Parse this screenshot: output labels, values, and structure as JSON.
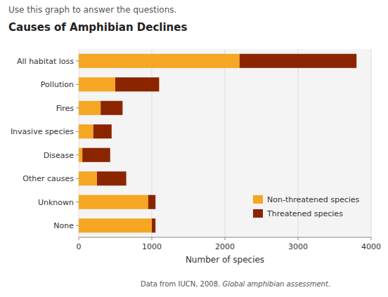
{
  "chart_data": {
    "type": "bar",
    "orientation": "horizontal",
    "stacked": true,
    "title": "Causes of Amphibian Declines",
    "subtitle": "Use this graph to answer the questions.",
    "x_label": "Number of species",
    "categories": [
      "None",
      "Unknown",
      "Other causes",
      "Disease",
      "Invasive species",
      "Fires",
      "Pollution",
      "All habitat loss"
    ],
    "series": [
      {
        "name": "Non-threatened species",
        "color": "#F5A623",
        "values": [
          1000,
          950,
          250,
          50,
          200,
          300,
          500,
          2200
        ]
      },
      {
        "name": "Threatened species",
        "color": "#8B2500",
        "values": [
          50,
          100,
          400,
          380,
          250,
          300,
          600,
          1600
        ]
      }
    ],
    "xlim": [
      0,
      4000
    ],
    "xticks": [
      0,
      1000,
      2000,
      3000,
      4000
    ],
    "grid": true,
    "legend": "lower right",
    "annotations": [
      "Data from IUCN, 2008. ",
      "Global amphibian assessment",
      "."
    ]
  }
}
